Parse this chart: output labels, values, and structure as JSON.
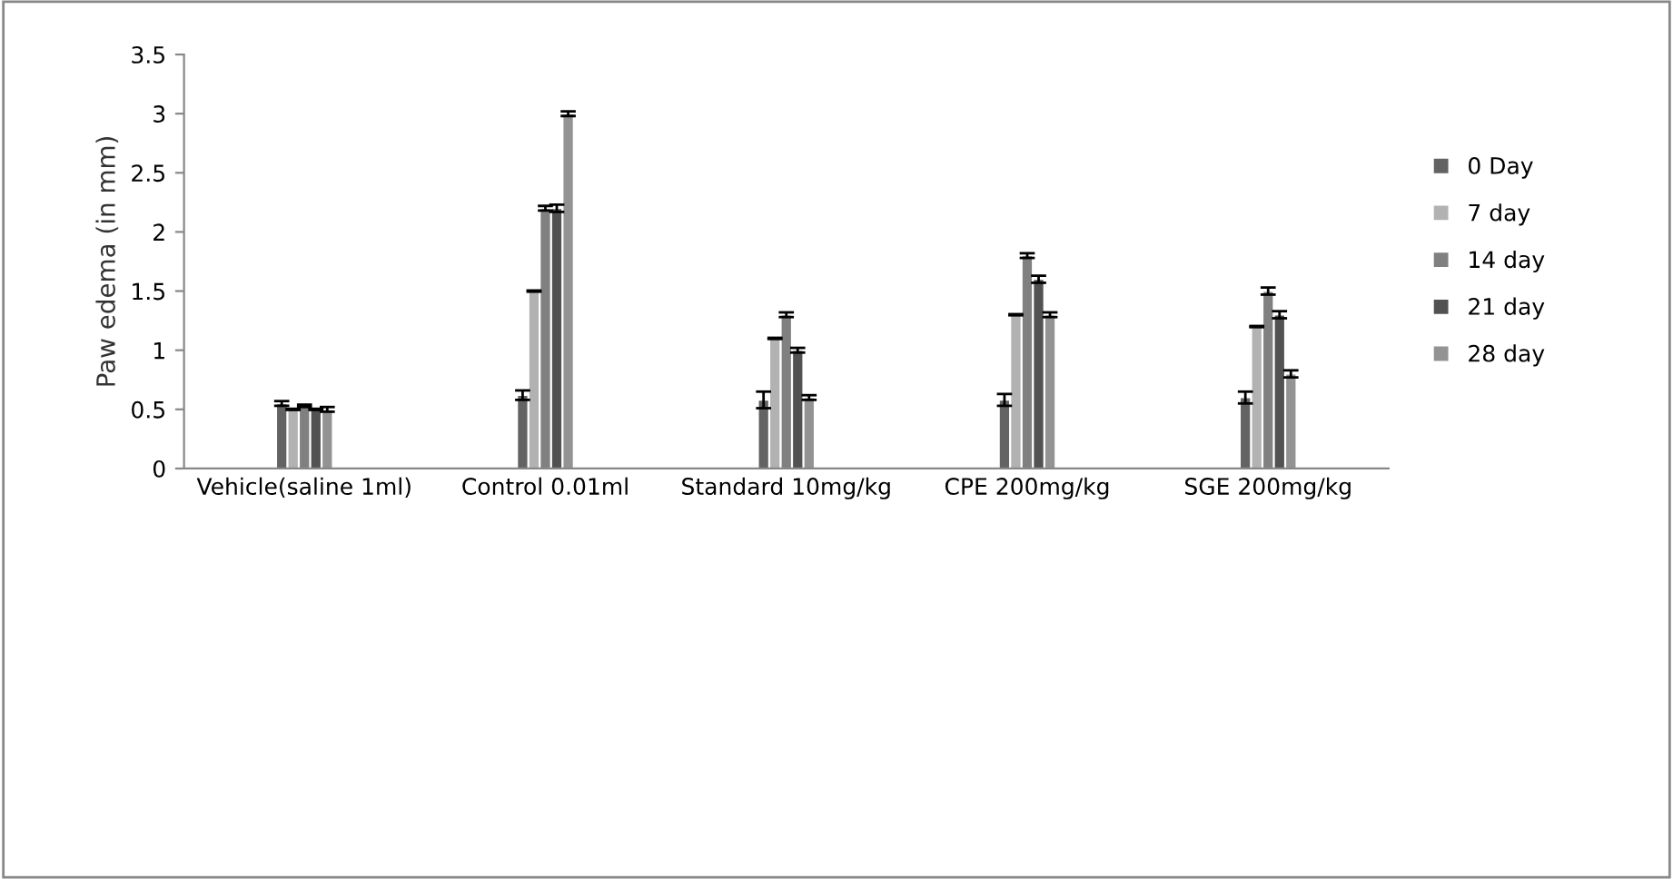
{
  "chart_data": {
    "type": "bar",
    "ylabel": "Paw edema (in mm)",
    "categories": [
      "Vehicle(saline 1ml)",
      "Control 0.01ml",
      "Standard 10mg/kg",
      "CPE 200mg/kg",
      "SGE 200mg/kg"
    ],
    "series": [
      {
        "name": "0 Day",
        "color": "#636363",
        "values": [
          0.55,
          0.62,
          0.58,
          0.58,
          0.6
        ],
        "errors": [
          0.02,
          0.04,
          0.07,
          0.05,
          0.05
        ]
      },
      {
        "name": "7 day",
        "color": "#b2b2b2",
        "values": [
          0.5,
          1.5,
          1.1,
          1.3,
          1.2
        ],
        "errors": [
          0.005,
          0.005,
          0.005,
          0.005,
          0.005
        ]
      },
      {
        "name": "14 day",
        "color": "#808080",
        "values": [
          0.53,
          2.2,
          1.3,
          1.8,
          1.5
        ],
        "errors": [
          0.01,
          0.02,
          0.02,
          0.02,
          0.03
        ]
      },
      {
        "name": "21 day",
        "color": "#525252",
        "values": [
          0.5,
          2.2,
          1.0,
          1.6,
          1.3
        ],
        "errors": [
          0.005,
          0.03,
          0.02,
          0.03,
          0.03
        ]
      },
      {
        "name": "28 day",
        "color": "#939393",
        "values": [
          0.5,
          3.0,
          0.6,
          1.3,
          0.8
        ],
        "errors": [
          0.02,
          0.02,
          0.02,
          0.02,
          0.03
        ]
      }
    ],
    "ylim": [
      0,
      3.5
    ],
    "yticks": [
      0,
      {
        "value": 0.5,
        "label": "0.5"
      },
      1,
      {
        "value": 1.5,
        "label": "1.5"
      },
      2,
      {
        "value": 2.5,
        "label": "2.5"
      },
      3,
      {
        "value": 3.5,
        "label": "3.5"
      }
    ],
    "grid": false,
    "legend": "right"
  }
}
